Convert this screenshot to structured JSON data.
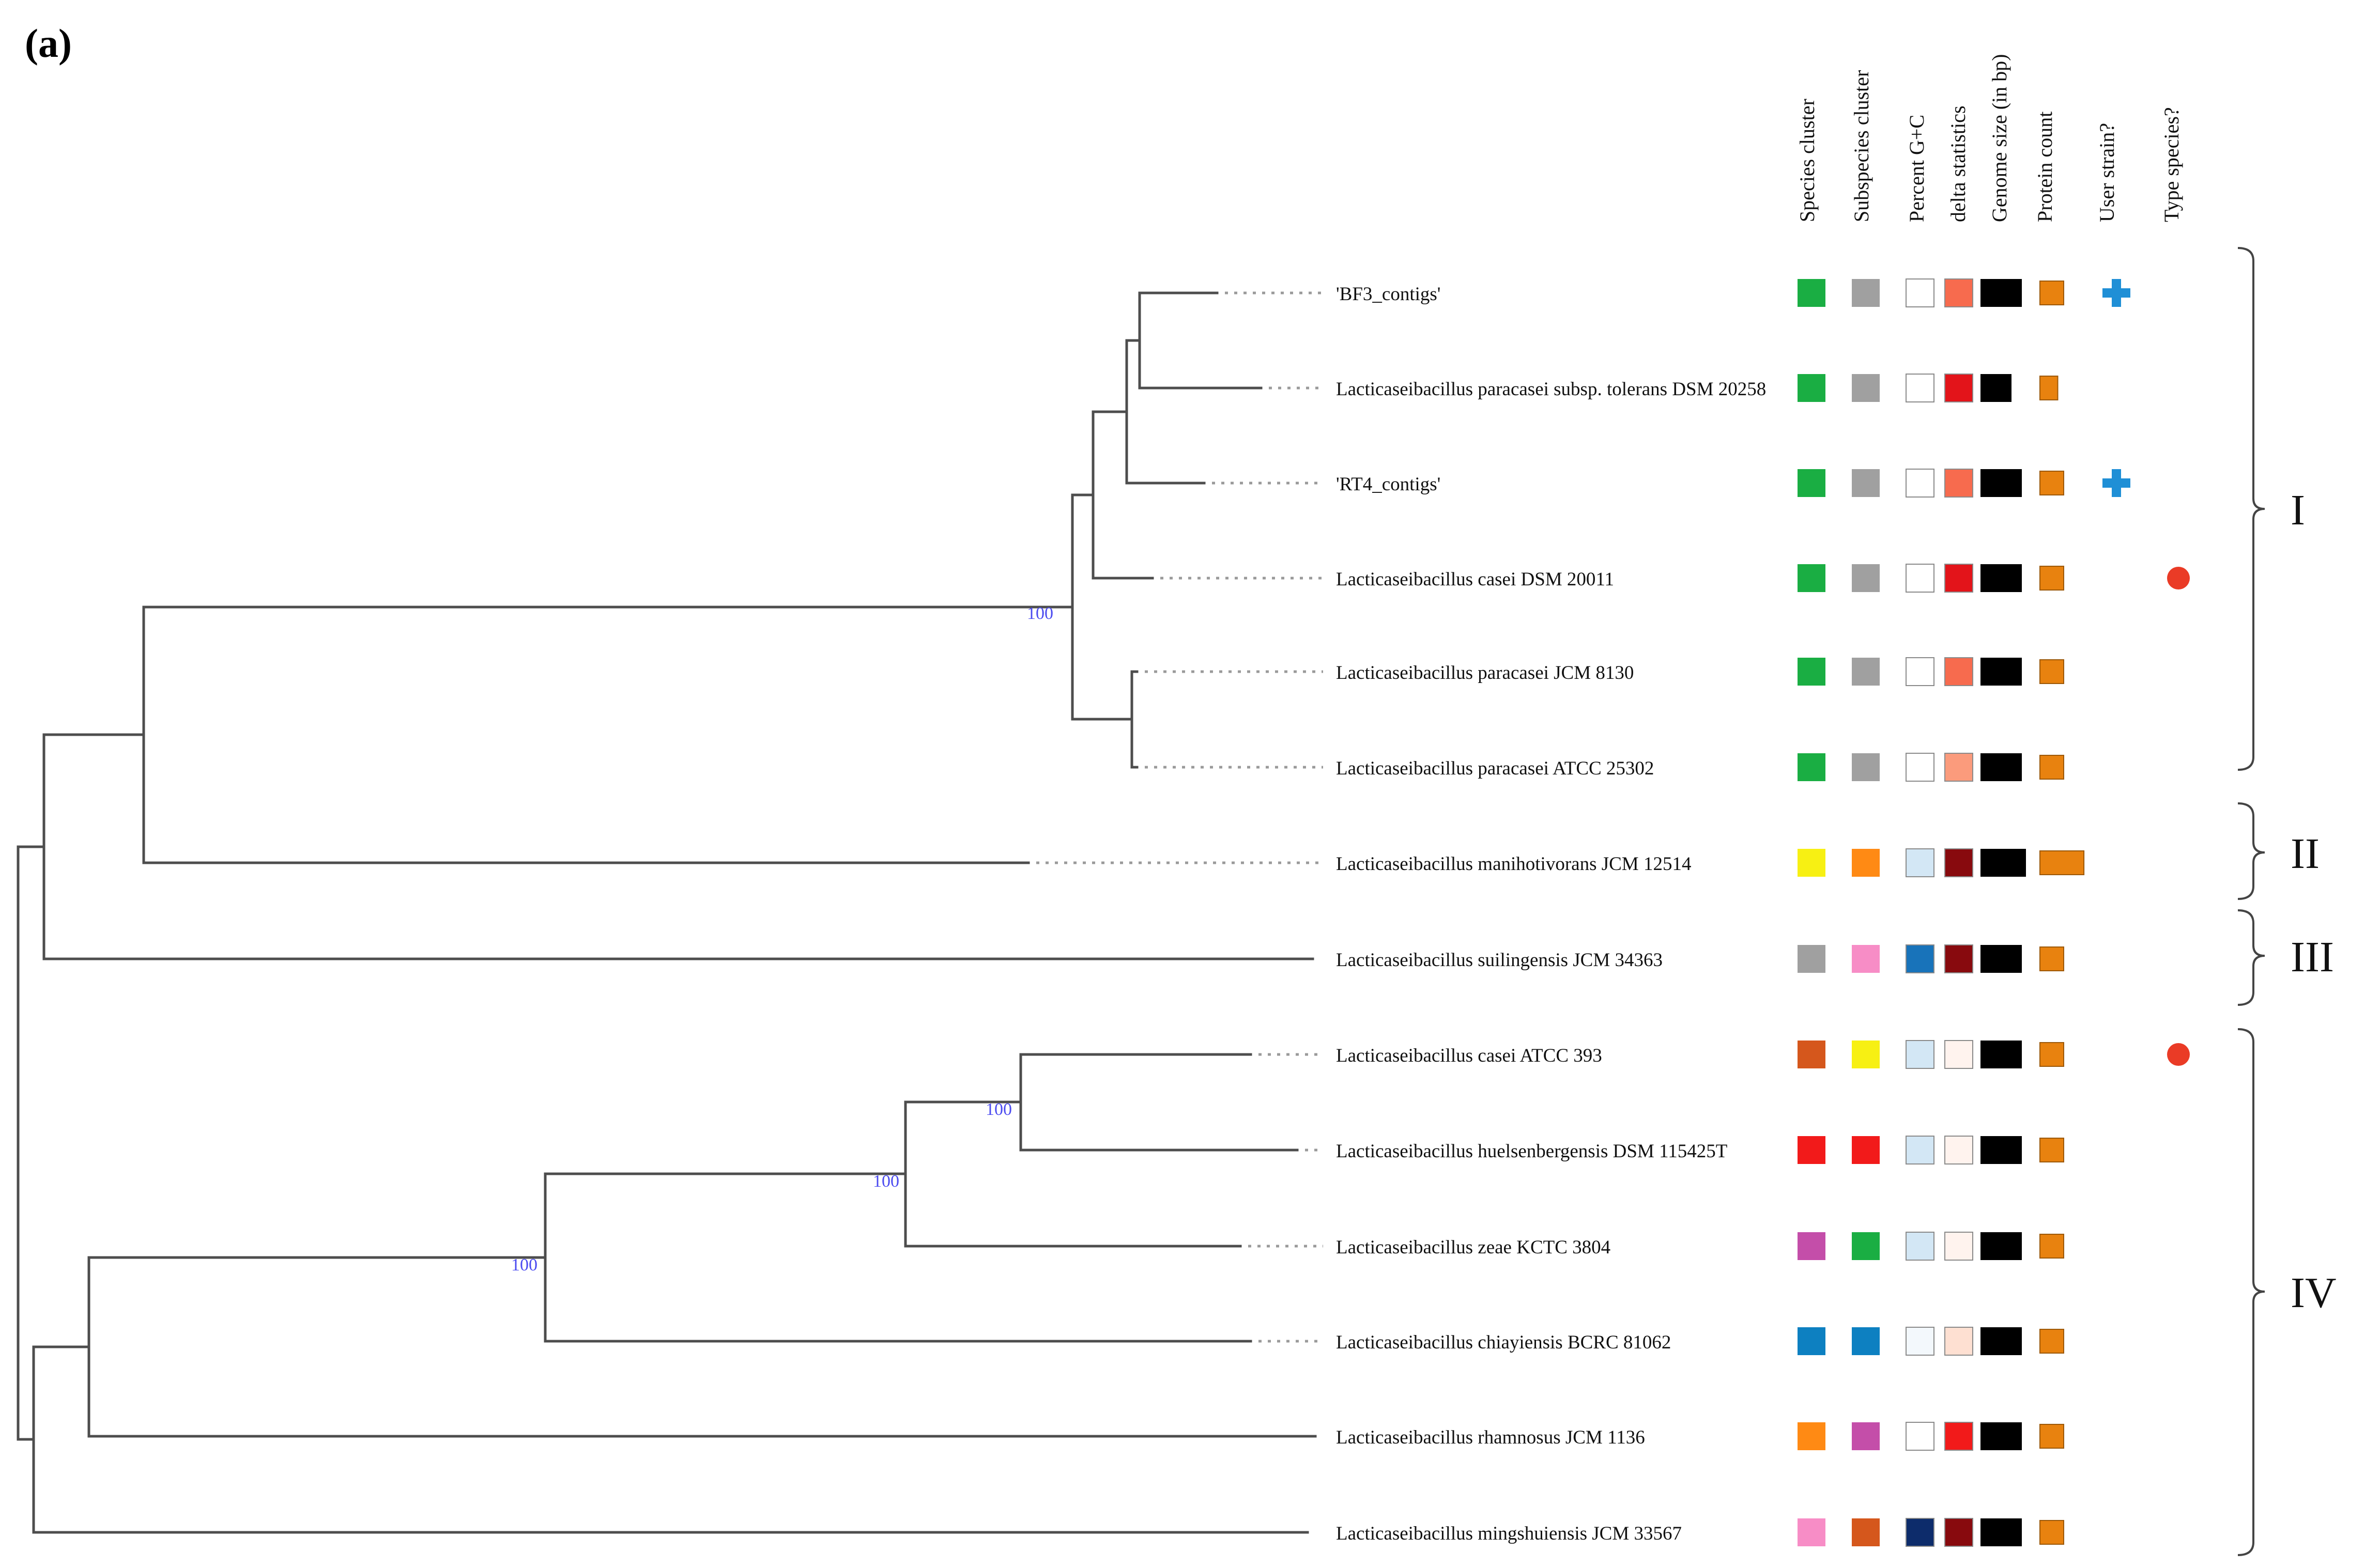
{
  "panel_label": "(a)",
  "columns": [
    {
      "key": "species",
      "label": "Species cluster"
    },
    {
      "key": "subspecies",
      "label": "Subspecies cluster"
    },
    {
      "key": "gc",
      "label": "Percent G+C"
    },
    {
      "key": "delta",
      "label": "delta statistics"
    },
    {
      "key": "genome",
      "label": "Genome size (in bp)"
    },
    {
      "key": "protein",
      "label": "Protein count"
    },
    {
      "key": "user",
      "label": "User strain?"
    },
    {
      "key": "type",
      "label": "Type species?"
    }
  ],
  "taxa": [
    {
      "label": "'BF3_contigs'",
      "species": "#1aae43",
      "subspecies": "#a0a0a0",
      "gc": "#ffffff",
      "delta": "#f76b4e",
      "genome_w": 1.0,
      "protein_w": 1.0,
      "user": true,
      "type": false
    },
    {
      "label": "Lacticaseibacillus paracasei subsp. tolerans DSM 20258",
      "species": "#1aae43",
      "subspecies": "#a0a0a0",
      "gc": "#ffffff",
      "delta": "#e3141a",
      "genome_w": 0.75,
      "protein_w": 0.75,
      "user": false,
      "type": false
    },
    {
      "label": "'RT4_contigs'",
      "species": "#1aae43",
      "subspecies": "#a0a0a0",
      "gc": "#ffffff",
      "delta": "#f76b4e",
      "genome_w": 1.0,
      "protein_w": 1.0,
      "user": true,
      "type": false
    },
    {
      "label": "Lacticaseibacillus casei DSM 20011",
      "species": "#1aae43",
      "subspecies": "#a0a0a0",
      "gc": "#ffffff",
      "delta": "#e3141a",
      "genome_w": 1.0,
      "protein_w": 1.0,
      "user": false,
      "type": true
    },
    {
      "label": "Lacticaseibacillus paracasei JCM 8130",
      "species": "#1aae43",
      "subspecies": "#a0a0a0",
      "gc": "#ffffff",
      "delta": "#f76b4e",
      "genome_w": 1.0,
      "protein_w": 1.0,
      "user": false,
      "type": false
    },
    {
      "label": "Lacticaseibacillus paracasei ATCC 25302",
      "species": "#1aae43",
      "subspecies": "#a0a0a0",
      "gc": "#ffffff",
      "delta": "#fb9b7c",
      "genome_w": 1.0,
      "protein_w": 1.0,
      "user": false,
      "type": false
    },
    {
      "label": "Lacticaseibacillus manihotivorans JCM 12514",
      "species": "#f7f013",
      "subspecies": "#ff8a14",
      "gc": "#d3e7f5",
      "delta": "#880a0e",
      "genome_w": 1.1,
      "protein_w": 1.85,
      "user": false,
      "type": false
    },
    {
      "label": "Lacticaseibacillus suilingensis JCM 34363",
      "species": "#a0a0a0",
      "subspecies": "#f78dc6",
      "gc": "#1873ba",
      "delta": "#880a0e",
      "genome_w": 1.0,
      "protein_w": 1.0,
      "user": false,
      "type": false
    },
    {
      "label": "Lacticaseibacillus casei ATCC 393",
      "species": "#d5571c",
      "subspecies": "#f7f013",
      "gc": "#d3e7f5",
      "delta": "#fff3ee",
      "genome_w": 1.0,
      "protein_w": 1.0,
      "user": false,
      "type": true
    },
    {
      "label": "Lacticaseibacillus huelsenbergensis DSM 115425T",
      "species": "#f21a1a",
      "subspecies": "#f21a1a",
      "gc": "#d3e7f5",
      "delta": "#fff3ee",
      "genome_w": 1.0,
      "protein_w": 1.0,
      "user": false,
      "type": false
    },
    {
      "label": "Lacticaseibacillus zeae KCTC 3804",
      "species": "#c44ea9",
      "subspecies": "#1aae43",
      "gc": "#d3e7f5",
      "delta": "#fff3ee",
      "genome_w": 1.0,
      "protein_w": 1.0,
      "user": false,
      "type": false
    },
    {
      "label": "Lacticaseibacillus chiayiensis BCRC 81062",
      "species": "#0d80c1",
      "subspecies": "#0d80c1",
      "gc": "#f3f8fc",
      "delta": "#fee0d2",
      "genome_w": 1.0,
      "protein_w": 1.0,
      "user": false,
      "type": false
    },
    {
      "label": "Lacticaseibacillus rhamnosus JCM 1136",
      "species": "#ff8a14",
      "subspecies": "#c44ea9",
      "gc": "#ffffff",
      "delta": "#f21a1a",
      "genome_w": 1.0,
      "protein_w": 1.0,
      "user": false,
      "type": false
    },
    {
      "label": "Lacticaseibacillus mingshuiensis JCM 33567",
      "species": "#f78dc6",
      "subspecies": "#d5571c",
      "gc": "#0d2c6b",
      "delta": "#880a0e",
      "genome_w": 1.0,
      "protein_w": 1.0,
      "user": false,
      "type": false
    }
  ],
  "support_values": [
    "100",
    "100",
    "100",
    "100"
  ],
  "clade_labels": [
    {
      "label": "I",
      "first_taxon": 0,
      "last_taxon": 5
    },
    {
      "label": "II",
      "first_taxon": 6,
      "last_taxon": 6
    },
    {
      "label": "III",
      "first_taxon": 7,
      "last_taxon": 7
    },
    {
      "label": "IV",
      "first_taxon": 8,
      "last_taxon": 13
    }
  ],
  "colors": {
    "branch": "#4d4d4d",
    "dotted": "#9a9a9a",
    "support_text": "#4b4bf0",
    "genome_fill": "#000000",
    "protein_fill": "#e8820f",
    "protein_stroke": "#9c5808",
    "user_marker": "#1f8fd6",
    "type_marker": "#ea3b26",
    "box_stroke": "#8a8a8a"
  }
}
